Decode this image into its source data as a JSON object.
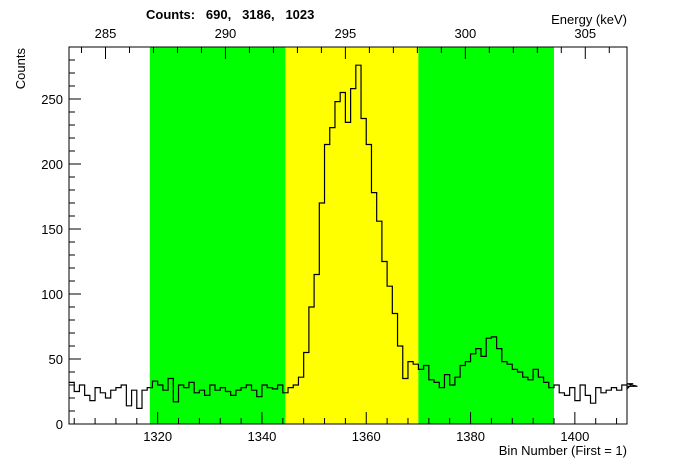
{
  "chart_data": {
    "type": "line",
    "style": "step-histogram",
    "title": "Counts:   690,   3186,   1023",
    "xlabel": "Bin Number (First = 1)",
    "ylabel": "Counts",
    "x2label": "Energy (keV)",
    "xlim": [
      1303,
      1410
    ],
    "ylim": [
      0,
      290
    ],
    "x_ticks": [
      1320,
      1340,
      1360,
      1380,
      1400
    ],
    "y_ticks": [
      50,
      100,
      150,
      200,
      250
    ],
    "x2_ticks": [
      {
        "label": "285",
        "bin": 1310
      },
      {
        "label": "290",
        "bin": 1333
      },
      {
        "label": "295",
        "bin": 1356
      },
      {
        "label": "300",
        "bin": 1379
      },
      {
        "label": "305",
        "bin": 1402
      }
    ],
    "regions": [
      {
        "name": "background-left",
        "from": 1318.5,
        "to": 1344.5,
        "color": "#00ff00"
      },
      {
        "name": "peak",
        "from": 1344.5,
        "to": 1370.0,
        "color": "#ffff00"
      },
      {
        "name": "background-right",
        "from": 1370.0,
        "to": 1396.0,
        "color": "#00ff00"
      }
    ],
    "region_counts": [
      690,
      3186,
      1023
    ],
    "series": [
      {
        "start_bin": 1303,
        "bin_width": 1,
        "values": [
          32,
          25,
          30,
          22,
          18,
          28,
          24,
          20,
          26,
          28,
          30,
          14,
          26,
          12,
          26,
          28,
          33,
          30,
          26,
          35,
          17,
          30,
          28,
          32,
          24,
          26,
          22,
          30,
          26,
          28,
          25,
          22,
          26,
          28,
          30,
          26,
          21,
          30,
          28,
          27,
          30,
          24,
          28,
          30,
          36,
          55,
          90,
          115,
          170,
          215,
          228,
          248,
          255,
          232,
          258,
          276,
          235,
          215,
          178,
          156,
          125,
          106,
          85,
          60,
          35,
          48,
          46,
          42,
          45,
          34,
          32,
          28,
          38,
          30,
          36,
          45,
          48,
          54,
          58,
          52,
          66,
          67,
          58,
          48,
          46,
          42,
          40,
          36,
          34,
          42,
          36,
          32,
          28,
          30,
          24,
          22,
          28,
          18,
          30,
          22,
          16,
          28,
          24,
          26,
          28,
          26,
          30,
          27,
          31,
          29
        ]
      }
    ]
  }
}
